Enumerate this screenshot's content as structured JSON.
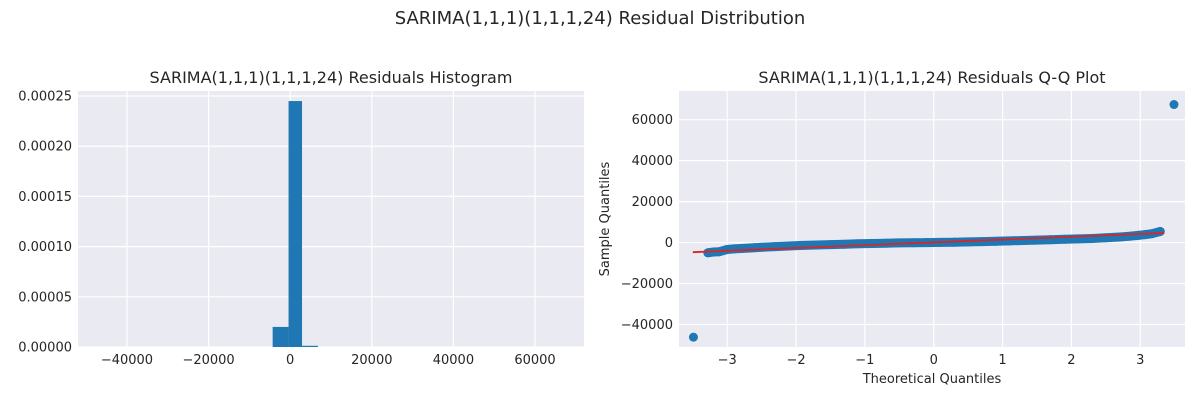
{
  "figure": {
    "title": "SARIMA(1,1,1)(1,1,1,24) Residual Distribution"
  },
  "chart_data": [
    {
      "type": "bar",
      "title": "SARIMA(1,1,1)(1,1,1,24) Residuals Histogram",
      "xlabel": "",
      "ylabel": "",
      "xlim": [
        -52000,
        72000
      ],
      "ylim": [
        0,
        0.000255
      ],
      "xticks": [
        -40000,
        -20000,
        0,
        20000,
        40000,
        60000
      ],
      "xtick_labels": [
        "−40000",
        "−20000",
        "0",
        "20000",
        "40000",
        "60000"
      ],
      "yticks": [
        0,
        5e-05,
        0.0001,
        0.00015,
        0.0002,
        0.00025
      ],
      "ytick_labels": [
        "0.00000",
        "0.00005",
        "0.00010",
        "0.00015",
        "0.00020",
        "0.00025"
      ],
      "grid": true,
      "color": "#1f77b4",
      "bins": [
        {
          "x0": -4300,
          "x1": -400,
          "value": 2e-05
        },
        {
          "x0": -400,
          "x1": 2900,
          "value": 0.000245
        },
        {
          "x0": 2900,
          "x1": 6800,
          "value": 1.2e-06
        }
      ]
    },
    {
      "type": "scatter",
      "title": "SARIMA(1,1,1)(1,1,1,24) Residuals Q-Q Plot",
      "xlabel": "Theoretical Quantiles",
      "ylabel": "Sample Quantiles",
      "xlim": [
        -3.7,
        3.65
      ],
      "ylim": [
        -51000,
        74000
      ],
      "xticks": [
        -3,
        -2,
        -1,
        0,
        1,
        2,
        3
      ],
      "xtick_labels": [
        "−3",
        "−2",
        "−1",
        "0",
        "1",
        "2",
        "3"
      ],
      "yticks": [
        -40000,
        -20000,
        0,
        20000,
        40000,
        60000
      ],
      "ytick_labels": [
        "−40000",
        "−20000",
        "0",
        "20000",
        "40000",
        "60000"
      ],
      "grid": true,
      "point_color": "#1f77b4",
      "line_color": "#d62728",
      "reference_line": {
        "x": [
          -3.5,
          3.35
        ],
        "y": [
          -4700,
          4700
        ]
      },
      "points": [
        {
          "x": -3.49,
          "y": -46200
        },
        {
          "x": -3.28,
          "y": -5000
        },
        {
          "x": -3.2,
          "y": -4600
        },
        {
          "x": -3.12,
          "y": -4500
        },
        {
          "x": -3.0,
          "y": -3400
        },
        {
          "x": -2.9,
          "y": -3100
        },
        {
          "x": -2.8,
          "y": -2900
        },
        {
          "x": -2.7,
          "y": -2700
        },
        {
          "x": -2.6,
          "y": -2500
        },
        {
          "x": -2.5,
          "y": -2300
        },
        {
          "x": -2.3,
          "y": -2000
        },
        {
          "x": -2.1,
          "y": -1700
        },
        {
          "x": -1.9,
          "y": -1400
        },
        {
          "x": -1.7,
          "y": -1200
        },
        {
          "x": -1.5,
          "y": -1000
        },
        {
          "x": -1.3,
          "y": -800
        },
        {
          "x": -1.1,
          "y": -600
        },
        {
          "x": -0.9,
          "y": -450
        },
        {
          "x": -0.7,
          "y": -300
        },
        {
          "x": -0.5,
          "y": -180
        },
        {
          "x": -0.3,
          "y": -80
        },
        {
          "x": -0.1,
          "y": 0
        },
        {
          "x": 0.1,
          "y": 80
        },
        {
          "x": 0.3,
          "y": 180
        },
        {
          "x": 0.5,
          "y": 300
        },
        {
          "x": 0.7,
          "y": 450
        },
        {
          "x": 0.9,
          "y": 600
        },
        {
          "x": 1.1,
          "y": 800
        },
        {
          "x": 1.3,
          "y": 1000
        },
        {
          "x": 1.5,
          "y": 1200
        },
        {
          "x": 1.7,
          "y": 1400
        },
        {
          "x": 1.9,
          "y": 1600
        },
        {
          "x": 2.1,
          "y": 1800
        },
        {
          "x": 2.3,
          "y": 2000
        },
        {
          "x": 2.5,
          "y": 2300
        },
        {
          "x": 2.7,
          "y": 2700
        },
        {
          "x": 2.85,
          "y": 3100
        },
        {
          "x": 2.97,
          "y": 3500
        },
        {
          "x": 3.07,
          "y": 3900
        },
        {
          "x": 3.17,
          "y": 4300
        },
        {
          "x": 3.29,
          "y": 5400
        },
        {
          "x": 3.49,
          "y": 67400
        }
      ]
    }
  ]
}
